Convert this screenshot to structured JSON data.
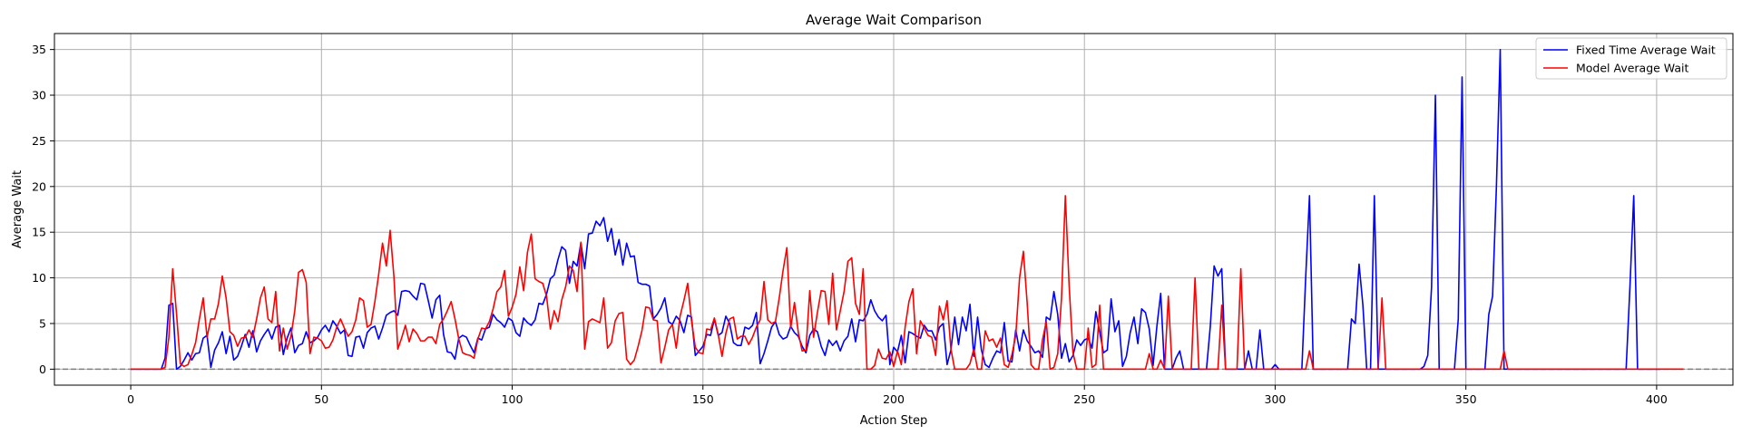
{
  "chart_data": {
    "type": "line",
    "title": "Average Wait Comparison",
    "xlabel": "Action Step",
    "ylabel": "Average Wait",
    "xlim": [
      -20,
      420
    ],
    "ylim": [
      -1.75,
      36.75
    ],
    "xticks": [
      0,
      50,
      100,
      150,
      200,
      250,
      300,
      350,
      400
    ],
    "yticks": [
      0,
      5,
      10,
      15,
      20,
      25,
      30,
      35
    ],
    "grid": true,
    "legend_position": "top-right",
    "reference_line": {
      "y": 0,
      "style": "dashed",
      "color": "#808080"
    },
    "series": [
      {
        "name": "Fixed Time Average Wait",
        "color": "#0000ff",
        "values": [
          0,
          0,
          0,
          0,
          0,
          0,
          0,
          0,
          0,
          1.2,
          7,
          7.2,
          0,
          0.3,
          1,
          1.8,
          1,
          1.7,
          1.8,
          3.4,
          3.7,
          0.2,
          2.1,
          2.9,
          4.1,
          1.7,
          3.6,
          1,
          1.4,
          2.5,
          3.8,
          2.4,
          4.2,
          1.9,
          3.1,
          3.8,
          4.4,
          3.3,
          4.6,
          4.8,
          1.6,
          3.4,
          4.5,
          1.8,
          2.6,
          2.8,
          4.1,
          2.9,
          3.1,
          3.5,
          4.3,
          4.8,
          4.1,
          5.3,
          4.7,
          3.9,
          4.3,
          1.5,
          1.4,
          3.5,
          3.6,
          2.3,
          4,
          4.5,
          4.7,
          3.3,
          4.5,
          5.9,
          6.2,
          6.4,
          5.9,
          8.5,
          8.6,
          8.5,
          8,
          7.6,
          9.4,
          9.3,
          7.5,
          5.6,
          7.6,
          8.1,
          3.8,
          1.9,
          1.8,
          1.1,
          3.4,
          3.7,
          3.5,
          2.6,
          1.8,
          3.4,
          3.2,
          4.4,
          4.6,
          6,
          5.4,
          5.1,
          4.6,
          5.6,
          5.3,
          4,
          3.6,
          5.6,
          5.1,
          4.8,
          5.4,
          7.2,
          7.1,
          8.2,
          9.9,
          10.3,
          12,
          13.4,
          13,
          9.4,
          11.8,
          11.3,
          13.8,
          11,
          14.8,
          14.9,
          16.2,
          15.7,
          16.6,
          14,
          15.4,
          12.5,
          14.2,
          11.4,
          13.8,
          12.3,
          12.4,
          9.5,
          9.3,
          9.3,
          9.1,
          5.5,
          6,
          6.7,
          7.8,
          5.2,
          4.9,
          5.8,
          5.3,
          4,
          5.9,
          5.7,
          1.5,
          2,
          2.5,
          3.8,
          3.7,
          5.5,
          3.7,
          4,
          5.8,
          5,
          2.9,
          2.6,
          2.6,
          4.6,
          4.4,
          4.8,
          6.2,
          0.6,
          1.7,
          3.1,
          4.6,
          5.2,
          3.8,
          3.3,
          3.5,
          4.7,
          4,
          3.6,
          2.5,
          1.8,
          3.7,
          4.4,
          4.1,
          2.5,
          1.5,
          3.2,
          2.6,
          3.1,
          2,
          3.1,
          3.6,
          5.5,
          3,
          5.4,
          5.3,
          6,
          7.6,
          6.4,
          5.7,
          5.3,
          5.9,
          0.5,
          2.4,
          1.9,
          3.7,
          0.7,
          4.1,
          3.9,
          3.6,
          3.4,
          4.8,
          4.2,
          4.2,
          3.2,
          4.6,
          5,
          0.5,
          2.1,
          5.7,
          2.7,
          5.7,
          4.2,
          7.1,
          1.4,
          5.7,
          2.1,
          0.5,
          0.2,
          1.2,
          2,
          1.8,
          5.1,
          0.9,
          0.8,
          4.3,
          2,
          4.3,
          3.1,
          2.5,
          1.8,
          2,
          1.3,
          5.7,
          5.4,
          8.5,
          6,
          1.2,
          2.8,
          0.8,
          1.5,
          3.2,
          2.6,
          3.2,
          3.4,
          2.3,
          6.3,
          4.1,
          1.8,
          2.1,
          7.7,
          4.1,
          5.3,
          0.3,
          1.4,
          4,
          5.7,
          2.8,
          6.6,
          6.2,
          4.4,
          0.4,
          4.7,
          8.3,
          0,
          0,
          0,
          1.2,
          2,
          0,
          0,
          0,
          0,
          0,
          0,
          0,
          4.7,
          11.3,
          10.2,
          11,
          0,
          0,
          0,
          0,
          0,
          0,
          2,
          0,
          0,
          4.3,
          0,
          0,
          0,
          0.5,
          0,
          0,
          0,
          0,
          0,
          0,
          0,
          10,
          19,
          0,
          0,
          0,
          0,
          0,
          0,
          0,
          0,
          0,
          0,
          5.5,
          5,
          11.5,
          7,
          0,
          0,
          19,
          0,
          0,
          0,
          0,
          0,
          0,
          0,
          0,
          0,
          0,
          0,
          0,
          0.3,
          1.5,
          9,
          30,
          0,
          0,
          0,
          0,
          0,
          5.5,
          32,
          0,
          0,
          0,
          0,
          0,
          0,
          6,
          8,
          20,
          35,
          0,
          0,
          0,
          0,
          0,
          0,
          0,
          0,
          0,
          0,
          0,
          0,
          0,
          0,
          0,
          0,
          0,
          0,
          0,
          0,
          0,
          0,
          0,
          0,
          0,
          0,
          0,
          0,
          0,
          0,
          0,
          0,
          0,
          9,
          19,
          0,
          0,
          0,
          0,
          0,
          0,
          0
        ]
      },
      {
        "name": "Model Average Wait",
        "color": "#ff0000",
        "values": [
          0,
          0,
          0,
          0,
          0,
          0,
          0,
          0,
          0,
          0.2,
          3.5,
          11,
          6.1,
          0.6,
          0.3,
          0.5,
          1.6,
          2.9,
          5.5,
          7.8,
          3.5,
          5.5,
          5.5,
          7.2,
          10.2,
          7.8,
          4.1,
          3.7,
          2.5,
          3.4,
          3.5,
          4.3,
          3.5,
          5.5,
          7.8,
          9,
          5.5,
          5.1,
          8.5,
          2,
          4.5,
          2.2,
          3.6,
          6.4,
          10.6,
          10.9,
          9.5,
          1.7,
          3.5,
          3.4,
          3.1,
          2.3,
          2.4,
          3.2,
          4.6,
          5.5,
          4.5,
          3.6,
          4.1,
          5.4,
          7.8,
          7.5,
          4.6,
          4.9,
          7.4,
          10.4,
          13.8,
          11.3,
          15.2,
          10.1,
          2.2,
          3.4,
          4.8,
          3,
          4.4,
          3.9,
          3.1,
          3.1,
          3.5,
          3.5,
          2.8,
          4.9,
          5.5,
          6.4,
          7.4,
          5.5,
          3.3,
          1.8,
          1.6,
          1.5,
          1.2,
          3.3,
          4.5,
          4.4,
          5.2,
          6.6,
          8.5,
          9,
          10.8,
          5.8,
          6.8,
          8.2,
          11.2,
          8.6,
          12.8,
          14.8,
          9.9,
          9.6,
          9.4,
          8,
          4.4,
          6.4,
          5.2,
          7.6,
          9,
          11.3,
          10.8,
          8.5,
          13.9,
          2.2,
          5.2,
          5.5,
          5.3,
          5.1,
          7.8,
          2.3,
          2.9,
          5.3,
          6.1,
          6.2,
          1.1,
          0.5,
          1,
          2.5,
          4.2,
          6.8,
          6.7,
          5.4,
          5.3,
          0.7,
          2.4,
          4.3,
          4.9,
          2.3,
          5.8,
          7.5,
          9.4,
          5.3,
          2.4,
          1.8,
          1.7,
          4.4,
          4.3,
          5.6,
          3.8,
          1.4,
          3.9,
          5.5,
          5.7,
          3.3,
          3.6,
          3.6,
          2.7,
          3.5,
          4.6,
          5.4,
          9.6,
          5.4,
          5,
          5.2,
          7.8,
          10.8,
          13.3,
          4.5,
          7.3,
          4,
          2,
          2.1,
          8.6,
          3.5,
          6.2,
          8.6,
          8.5,
          4.9,
          10.5,
          4.3,
          6.4,
          8.5,
          11.8,
          12.2,
          7.2,
          6,
          11,
          0,
          0,
          0.4,
          2.2,
          1.2,
          1.1,
          1.9,
          0.3,
          2,
          0.5,
          4.6,
          7.4,
          8.8,
          1.7,
          5.3,
          4.5,
          3.7,
          3.5,
          1.5,
          6.9,
          5.4,
          7.5,
          2.2,
          0,
          0,
          0,
          0,
          0.6,
          2.2,
          0,
          0,
          4.2,
          3.1,
          3.3,
          2.4,
          3.4,
          0.5,
          0.2,
          1.6,
          3.7,
          10,
          12.9,
          7.2,
          0.5,
          0,
          0,
          3.2,
          5.2,
          0,
          0.2,
          1.7,
          7.8,
          19,
          9.1,
          1.8,
          0,
          0,
          0,
          4.5,
          0.2,
          0.5,
          7,
          0,
          0,
          0,
          0,
          0,
          0,
          0,
          0,
          0,
          0,
          0,
          0,
          1.7,
          0,
          0,
          1,
          0,
          8,
          0,
          0,
          0,
          0,
          0,
          0,
          10,
          0,
          0,
          0,
          0,
          0,
          0,
          7,
          0,
          0,
          0,
          0,
          11,
          0,
          0,
          0,
          0,
          0,
          0,
          0,
          0,
          0,
          0,
          0,
          0,
          0,
          0,
          0,
          0,
          0,
          2,
          0,
          0,
          0,
          0,
          0,
          0,
          0,
          0,
          0,
          0,
          0,
          0,
          0,
          0,
          0,
          0,
          0,
          0,
          7.8,
          0,
          0,
          0,
          0,
          0,
          0,
          0,
          0,
          0,
          0,
          0,
          0,
          0,
          0,
          0,
          0,
          0,
          0,
          0,
          0,
          0,
          0,
          0,
          0,
          0,
          0,
          0,
          0,
          0,
          0,
          0,
          2,
          0,
          0,
          0,
          0,
          0,
          0,
          0,
          0,
          0,
          0,
          0,
          0,
          0,
          0,
          0,
          0,
          0,
          0,
          0,
          0,
          0,
          0,
          0,
          0,
          0,
          0,
          0,
          0,
          0,
          0,
          0,
          0,
          0,
          0,
          0,
          0,
          0,
          0,
          0,
          0,
          0,
          0,
          0,
          0,
          0,
          0,
          0
        ]
      }
    ]
  }
}
